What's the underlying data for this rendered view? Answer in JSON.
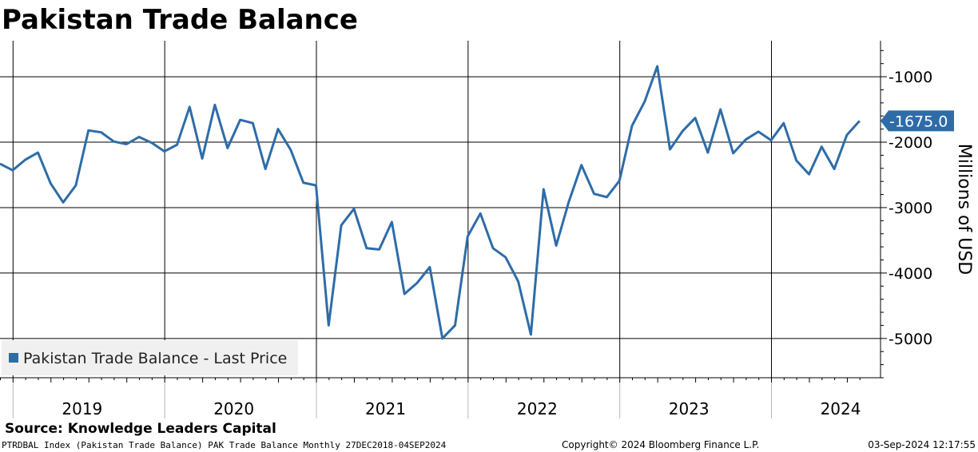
{
  "chart_data": {
    "type": "line",
    "title": "Pakistan Trade Balance",
    "ylabel": "Millions of USD",
    "xlabel": "",
    "ylim": [
      -5600,
      -450
    ],
    "y_ticks": [
      -1000,
      -2000,
      -3000,
      -4000,
      -5000
    ],
    "y_tick_labels": [
      "-1000",
      "-2000",
      "-3000",
      "-4000",
      "-5000"
    ],
    "year_labels": [
      "2019",
      "2020",
      "2021",
      "2022",
      "2023",
      "2024"
    ],
    "legend": "Pakistan Trade Balance - Last Price",
    "last_value": -1675.0,
    "last_value_label": "-1675.0",
    "x_start": "2018-12",
    "series": [
      {
        "name": "Pakistan Trade Balance - Last Price",
        "color": "#2e6ca8",
        "values": [
          -2330,
          -2430,
          -2270,
          -2160,
          -2630,
          -2920,
          -2660,
          -1820,
          -1850,
          -1990,
          -2030,
          -1920,
          -2010,
          -2140,
          -2040,
          -1460,
          -2250,
          -1430,
          -2090,
          -1660,
          -1710,
          -2410,
          -1800,
          -2120,
          -2620,
          -2660,
          -4800,
          -3270,
          -3020,
          -3620,
          -3640,
          -3220,
          -4320,
          -4150,
          -3910,
          -5000,
          -4800,
          -3440,
          -3090,
          -3620,
          -3760,
          -4130,
          -4940,
          -2720,
          -3580,
          -2910,
          -2350,
          -2790,
          -2840,
          -2590,
          -1750,
          -1380,
          -840,
          -2110,
          -1830,
          -1630,
          -2160,
          -1500,
          -2170,
          -1960,
          -1840,
          -1970,
          -1710,
          -2280,
          -2490,
          -2070,
          -2410,
          -1890,
          -1675
        ]
      }
    ]
  },
  "footer": {
    "source": "Source: Knowledge Leaders Capital",
    "index_info": "PTRDBAL Index (Pakistan Trade Balance) PAK Trade Balance  Monthly 27DEC2018-04SEP2024",
    "copyright": "Copyright© 2024 Bloomberg Finance L.P.",
    "timestamp": "03-Sep-2024 12:17:55"
  }
}
